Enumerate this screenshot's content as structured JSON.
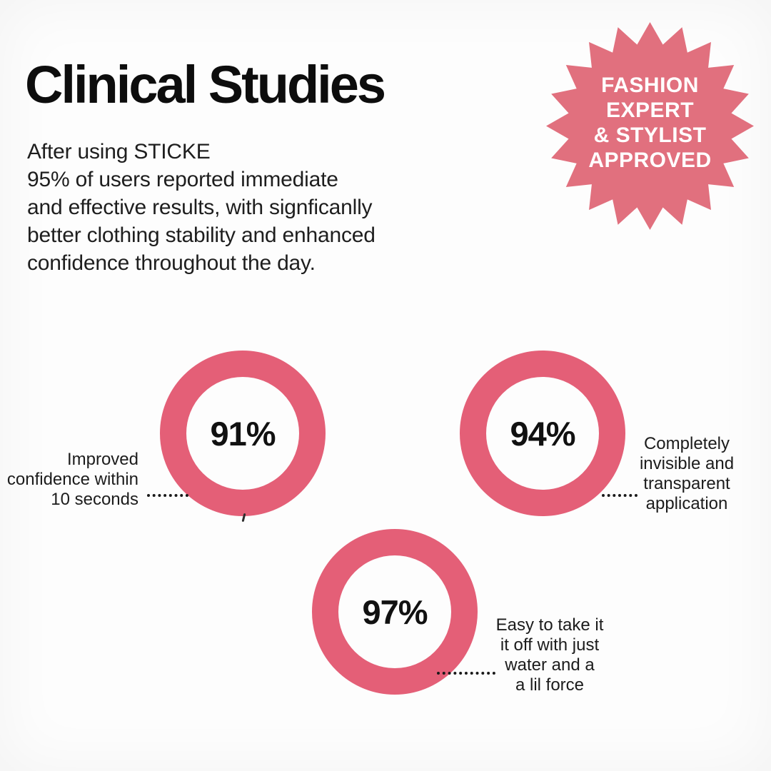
{
  "title": "Clinical Studies",
  "intro": "After using STICKE\n95% of users reported immediate\nand effective results, with signficanlly\nbetter clothing stability and enhanced\nconfidence throughout the day.",
  "badge": {
    "text": "FASHION\nEXPERT\n& STYLIST\nAPPROVED"
  },
  "stats": [
    {
      "value": "91%",
      "label": "Improved\nconfidence within\n10 seconds"
    },
    {
      "value": "94%",
      "label": "Completely\ninvisible and\ntransparent\napplication"
    },
    {
      "value": "97%",
      "label": "Easy to take it\nit off with just\nwater and a\na lil force"
    }
  ],
  "colors": {
    "ring": "#e45f77",
    "badge": "#e1707e",
    "badge_text": "#ffffff",
    "ink": "#161616",
    "background": "#fdfdfd"
  },
  "chart_data": {
    "type": "donut",
    "title": "Clinical Studies",
    "unit": "%",
    "series": [
      {
        "label": "Improved confidence within 10 seconds",
        "value": 91
      },
      {
        "label": "Completely invisible and transparent application",
        "value": 94
      },
      {
        "label": "Easy to take it it off with just water and a a lil force",
        "value": 97
      }
    ],
    "legend_position": "beside-each-ring",
    "note": "Values shown centered inside full (non-proportional) pink rings; headline stat 95% appears in intro text"
  }
}
